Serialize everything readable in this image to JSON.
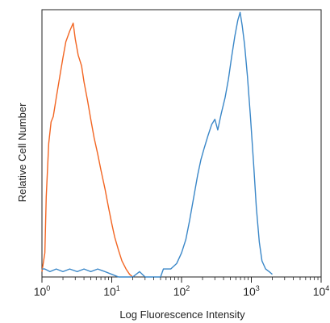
{
  "chart_data": {
    "type": "line",
    "xlabel": "Log Fluorescence Intensity",
    "ylabel": "Relative Cell Number",
    "xscale": "log",
    "xlim": [
      1,
      10000
    ],
    "ylim": [
      0,
      100
    ],
    "x_ticks": [
      {
        "base": "10",
        "exp": "0",
        "value": 1
      },
      {
        "base": "10",
        "exp": "1",
        "value": 10
      },
      {
        "base": "10",
        "exp": "2",
        "value": 100
      },
      {
        "base": "10",
        "exp": "3",
        "value": 1000
      },
      {
        "base": "10",
        "exp": "4",
        "value": 10000
      }
    ],
    "grid": false,
    "series": [
      {
        "color": "#f26522",
        "points": [
          [
            1.0,
            2
          ],
          [
            1.1,
            9
          ],
          [
            1.15,
            30
          ],
          [
            1.25,
            50
          ],
          [
            1.35,
            58
          ],
          [
            1.45,
            60
          ],
          [
            1.6,
            67
          ],
          [
            1.8,
            75
          ],
          [
            2.0,
            82
          ],
          [
            2.2,
            88
          ],
          [
            2.5,
            92
          ],
          [
            2.8,
            95
          ],
          [
            3.0,
            89
          ],
          [
            3.3,
            83
          ],
          [
            3.7,
            79
          ],
          [
            4.0,
            73
          ],
          [
            4.5,
            66
          ],
          [
            5.0,
            59
          ],
          [
            5.6,
            52
          ],
          [
            6.3,
            46
          ],
          [
            7.0,
            40
          ],
          [
            8.0,
            33
          ],
          [
            9.0,
            26
          ],
          [
            10.0,
            20
          ],
          [
            11.0,
            15
          ],
          [
            12.5,
            10
          ],
          [
            14.0,
            6
          ],
          [
            16.0,
            3
          ],
          [
            18.0,
            1
          ],
          [
            20.0,
            0
          ]
        ]
      },
      {
        "color": "#3a87c8",
        "points": [
          [
            1.0,
            3
          ],
          [
            1.1,
            3
          ],
          [
            1.3,
            2
          ],
          [
            1.6,
            3
          ],
          [
            2.0,
            2
          ],
          [
            2.5,
            3
          ],
          [
            3.2,
            2
          ],
          [
            4.0,
            3
          ],
          [
            5.0,
            2
          ],
          [
            6.3,
            3
          ],
          [
            8.0,
            2
          ],
          [
            10.0,
            1
          ],
          [
            12.5,
            0
          ],
          [
            20.0,
            0
          ],
          [
            25.0,
            2
          ],
          [
            30.0,
            0
          ],
          [
            50.0,
            0
          ],
          [
            55.0,
            3
          ],
          [
            70.0,
            3
          ],
          [
            85.0,
            5
          ],
          [
            100.0,
            9
          ],
          [
            115.0,
            14
          ],
          [
            130.0,
            21
          ],
          [
            150.0,
            30
          ],
          [
            170.0,
            38
          ],
          [
            190.0,
            44
          ],
          [
            210.0,
            48
          ],
          [
            240.0,
            53
          ],
          [
            270.0,
            57
          ],
          [
            300.0,
            59
          ],
          [
            330.0,
            55
          ],
          [
            370.0,
            61
          ],
          [
            420.0,
            67
          ],
          [
            470.0,
            74
          ],
          [
            520.0,
            82
          ],
          [
            580.0,
            90
          ],
          [
            640.0,
            96
          ],
          [
            690.0,
            99
          ],
          [
            740.0,
            94
          ],
          [
            800.0,
            87
          ],
          [
            880.0,
            75
          ],
          [
            970.0,
            60
          ],
          [
            1080.0,
            42
          ],
          [
            1180.0,
            26
          ],
          [
            1300.0,
            13
          ],
          [
            1420.0,
            6
          ],
          [
            1600.0,
            3
          ],
          [
            1800.0,
            2
          ],
          [
            2000.0,
            1
          ]
        ]
      }
    ]
  }
}
